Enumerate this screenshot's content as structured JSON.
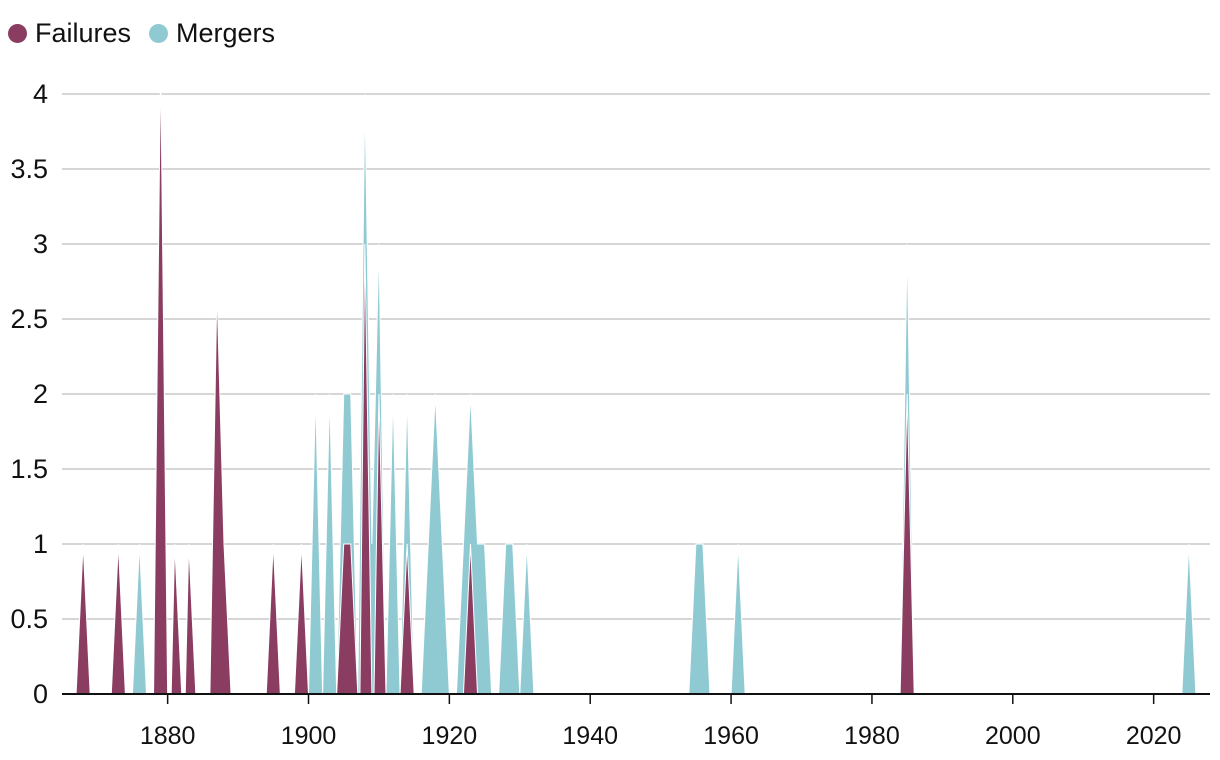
{
  "chart_data": {
    "type": "area",
    "title": "",
    "xlabel": "",
    "ylabel": "",
    "xlim": [
      1865,
      2028
    ],
    "ylim": [
      0,
      4.2
    ],
    "x_ticks": [
      1880,
      1900,
      1920,
      1940,
      1960,
      1980,
      2000,
      2020
    ],
    "y_ticks": [
      0,
      0.5,
      1,
      1.5,
      2,
      2.5,
      3,
      3.5,
      4
    ],
    "y_tick_labels": [
      "0",
      "0.5",
      "1",
      "1.5",
      "2",
      "2.5",
      "3",
      "3.5",
      "4"
    ],
    "x_tick_labels": [
      "1880",
      "1900",
      "1920",
      "1940",
      "1960",
      "1980",
      "2000",
      "2020"
    ],
    "grid": "horizontal",
    "legend_position": "top-left",
    "series": [
      {
        "name": "Mergers",
        "color": "#8fcad3",
        "points": [
          [
            1875,
            0
          ],
          [
            1876,
            1
          ],
          [
            1877,
            0
          ],
          [
            1900,
            0
          ],
          [
            1901,
            2
          ],
          [
            1902,
            0
          ],
          [
            1903,
            2
          ],
          [
            1904,
            0
          ],
          [
            1905,
            2
          ],
          [
            1906,
            2
          ],
          [
            1907,
            0
          ],
          [
            1908,
            4
          ],
          [
            1909,
            1
          ],
          [
            1910,
            3
          ],
          [
            1911,
            0
          ],
          [
            1912,
            2
          ],
          [
            1913,
            0
          ],
          [
            1914,
            2
          ],
          [
            1915,
            0
          ],
          [
            1916,
            0
          ],
          [
            1918,
            2
          ],
          [
            1920,
            0
          ],
          [
            1921,
            0
          ],
          [
            1923,
            2
          ],
          [
            1924,
            1
          ],
          [
            1925,
            1
          ],
          [
            1926,
            0
          ],
          [
            1927,
            0
          ],
          [
            1928,
            1
          ],
          [
            1929,
            1
          ],
          [
            1930,
            0
          ],
          [
            1931,
            1
          ],
          [
            1932,
            0
          ],
          [
            1954,
            0
          ],
          [
            1955,
            1
          ],
          [
            1956,
            1
          ],
          [
            1957,
            0
          ],
          [
            1960,
            0
          ],
          [
            1961,
            1
          ],
          [
            1962,
            0
          ],
          [
            1984,
            0
          ],
          [
            1985,
            3
          ],
          [
            1986,
            0
          ],
          [
            2024,
            0
          ],
          [
            2025,
            1
          ],
          [
            2026,
            0
          ]
        ]
      },
      {
        "name": "Failures",
        "color": "#8b3d61",
        "points": [
          [
            1867,
            0
          ],
          [
            1868,
            1
          ],
          [
            1869,
            0
          ],
          [
            1872,
            0
          ],
          [
            1873,
            1
          ],
          [
            1874,
            0
          ],
          [
            1878,
            0
          ],
          [
            1879,
            4.2
          ],
          [
            1880,
            0
          ],
          [
            1880.5,
            0
          ],
          [
            1881,
            1
          ],
          [
            1882,
            0
          ],
          [
            1882.5,
            0
          ],
          [
            1883,
            1
          ],
          [
            1884,
            0
          ],
          [
            1886,
            0
          ],
          [
            1887,
            2.7
          ],
          [
            1888,
            1
          ],
          [
            1889,
            0
          ],
          [
            1894,
            0
          ],
          [
            1895,
            1
          ],
          [
            1896,
            0
          ],
          [
            1898,
            0
          ],
          [
            1899,
            1
          ],
          [
            1900,
            0
          ],
          [
            1904,
            0
          ],
          [
            1905,
            1
          ],
          [
            1906,
            1
          ],
          [
            1907,
            0
          ],
          [
            1907.3,
            0
          ],
          [
            1908,
            3
          ],
          [
            1909,
            0
          ],
          [
            1909.3,
            0
          ],
          [
            1910,
            2
          ],
          [
            1911,
            0
          ],
          [
            1913,
            0
          ],
          [
            1914,
            1
          ],
          [
            1915,
            0
          ],
          [
            1922,
            0
          ],
          [
            1923,
            1
          ],
          [
            1924,
            0
          ],
          [
            1984,
            0
          ],
          [
            1985,
            2
          ],
          [
            1986,
            0
          ]
        ]
      }
    ]
  },
  "legend": {
    "failures_label": "Failures",
    "mergers_label": "Mergers",
    "failures_color": "#8b3d61",
    "mergers_color": "#8fcad3"
  }
}
